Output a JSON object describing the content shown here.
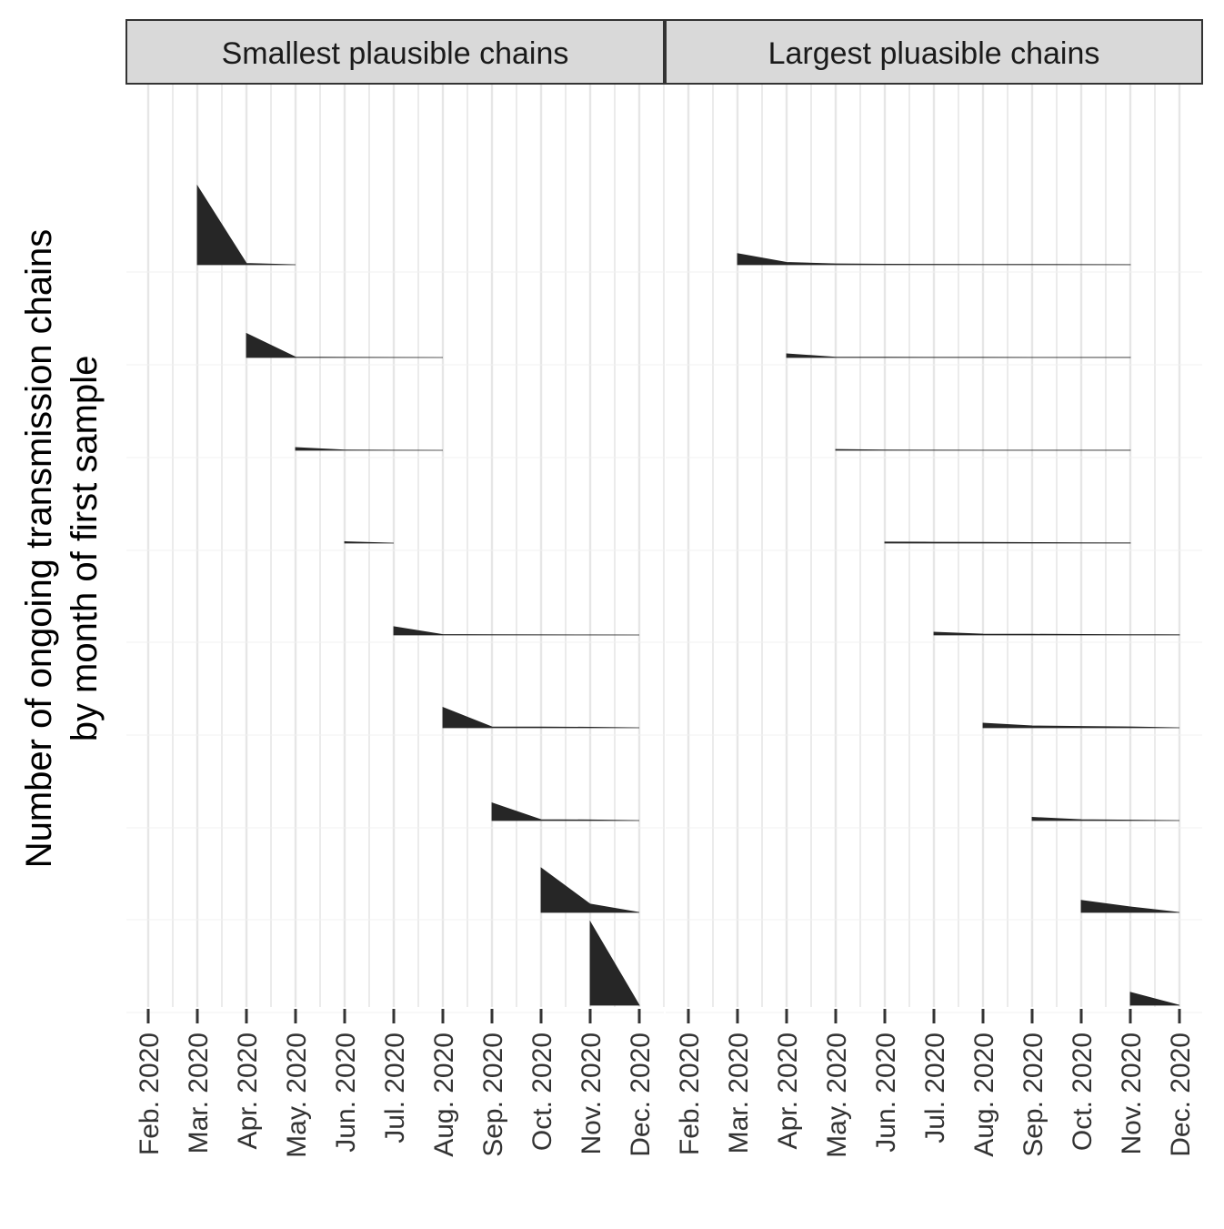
{
  "chart_data": {
    "type": "area",
    "ylabel_lines": [
      "Number of ongoing transmission chains",
      "by month of first sample"
    ],
    "x_ticks": [
      "Feb. 2020",
      "Mar. 2020",
      "Apr. 2020",
      "May. 2020",
      "Jun. 2020",
      "Jul. 2020",
      "Aug. 2020",
      "Sep. 2020",
      "Oct. 2020",
      "Nov. 2020",
      "Dec. 2020"
    ],
    "rows": [
      "Mar. 2020",
      "Apr. 2020",
      "May. 2020",
      "Jun. 2020",
      "Jul. 2020",
      "Aug. 2020",
      "Sep. 2020",
      "Oct. 2020",
      "Nov. 2020"
    ],
    "facets": [
      {
        "strip": "Smallest plausible chains",
        "ridges": [
          {
            "first_sample": "Mar. 2020",
            "values": [
              85,
              1.5,
              0
            ],
            "x": [
              "Mar. 2020",
              "Apr. 2020",
              "May. 2020"
            ]
          },
          {
            "first_sample": "Apr. 2020",
            "values": [
              26,
              0.5,
              0.2,
              0.1,
              0
            ],
            "x": [
              "Apr. 2020",
              "May. 2020",
              "Jun. 2020",
              "Jul. 2020",
              "Aug. 2020"
            ]
          },
          {
            "first_sample": "May. 2020",
            "values": [
              3,
              0.3,
              0.1,
              0
            ],
            "x": [
              "May. 2020",
              "Jun. 2020",
              "Jul. 2020",
              "Aug. 2020"
            ]
          },
          {
            "first_sample": "Jun. 2020",
            "values": [
              1.5,
              0
            ],
            "x": [
              "Jun. 2020",
              "Jul. 2020"
            ]
          },
          {
            "first_sample": "Jul. 2020",
            "values": [
              9,
              0.5,
              0.3,
              0.2,
              0.1,
              0
            ],
            "x": [
              "Jul. 2020",
              "Aug. 2020",
              "Sep. 2020",
              "Oct. 2020",
              "Nov. 2020",
              "Dec. 2020"
            ]
          },
          {
            "first_sample": "Aug. 2020",
            "values": [
              22,
              1,
              0.8,
              0.6,
              0
            ],
            "x": [
              "Aug. 2020",
              "Sep. 2020",
              "Oct. 2020",
              "Nov. 2020",
              "Dec. 2020"
            ]
          },
          {
            "first_sample": "Sep. 2020",
            "values": [
              19,
              1,
              0.7,
              0
            ],
            "x": [
              "Sep. 2020",
              "Oct. 2020",
              "Nov. 2020",
              "Dec. 2020"
            ]
          },
          {
            "first_sample": "Oct. 2020",
            "values": [
              48,
              9,
              0
            ],
            "x": [
              "Oct. 2020",
              "Nov. 2020",
              "Dec. 2020"
            ]
          },
          {
            "first_sample": "Nov. 2020",
            "values": [
              90,
              0
            ],
            "x": [
              "Nov. 2020",
              "Dec. 2020"
            ]
          }
        ]
      },
      {
        "strip": "Largest pluasible chains",
        "ridges": [
          {
            "first_sample": "Mar. 2020",
            "values": [
              12,
              2.5,
              1,
              0.6,
              0.5,
              0.4,
              0.3,
              0.2,
              0.1
            ],
            "x": [
              "Mar. 2020",
              "Apr. 2020",
              "May. 2020",
              "Jun. 2020",
              "Jul. 2020",
              "Aug. 2020",
              "Sep. 2020",
              "Oct. 2020",
              "Nov. 2020"
            ]
          },
          {
            "first_sample": "Apr. 2020",
            "values": [
              4,
              0.4,
              0.3,
              0.2,
              0.2,
              0.1,
              0.1,
              0.1
            ],
            "x": [
              "Apr. 2020",
              "May. 2020",
              "Jun. 2020",
              "Jul. 2020",
              "Aug. 2020",
              "Sep. 2020",
              "Oct. 2020",
              "Nov. 2020"
            ]
          },
          {
            "first_sample": "May. 2020",
            "values": [
              1,
              0.3,
              0.2,
              0.1,
              0.1,
              0.1,
              0.1
            ],
            "x": [
              "May. 2020",
              "Jun. 2020",
              "Jul. 2020",
              "Aug. 2020",
              "Sep. 2020",
              "Oct. 2020",
              "Nov. 2020"
            ]
          },
          {
            "first_sample": "Jun. 2020",
            "values": [
              1.2,
              1,
              0.8,
              0.6,
              0.4,
              0.2
            ],
            "x": [
              "Jun. 2020",
              "Jul. 2020",
              "Aug. 2020",
              "Sep. 2020",
              "Oct. 2020",
              "Nov. 2020"
            ]
          },
          {
            "first_sample": "Jul. 2020",
            "values": [
              3,
              1,
              0.8,
              0.6,
              0.4,
              0.2
            ],
            "x": [
              "Jul. 2020",
              "Aug. 2020",
              "Sep. 2020",
              "Oct. 2020",
              "Nov. 2020",
              "Dec. 2020"
            ]
          },
          {
            "first_sample": "Aug. 2020",
            "values": [
              5,
              2,
              1.5,
              1,
              0
            ],
            "x": [
              "Aug. 2020",
              "Sep. 2020",
              "Oct. 2020",
              "Nov. 2020",
              "Dec. 2020"
            ]
          },
          {
            "first_sample": "Sep. 2020",
            "values": [
              3.5,
              1,
              0.5,
              0
            ],
            "x": [
              "Sep. 2020",
              "Oct. 2020",
              "Nov. 2020",
              "Dec. 2020"
            ]
          },
          {
            "first_sample": "Oct. 2020",
            "values": [
              13,
              6,
              0
            ],
            "x": [
              "Oct. 2020",
              "Nov. 2020",
              "Dec. 2020"
            ]
          },
          {
            "first_sample": "Nov. 2020",
            "values": [
              14,
              0
            ],
            "x": [
              "Nov. 2020",
              "Dec. 2020"
            ]
          }
        ]
      }
    ],
    "grid": true,
    "colors": {
      "fill": "#262626",
      "grid": "#e6e6e6",
      "strip_bg": "#d9d9d9",
      "strip_border": "#333333"
    }
  }
}
